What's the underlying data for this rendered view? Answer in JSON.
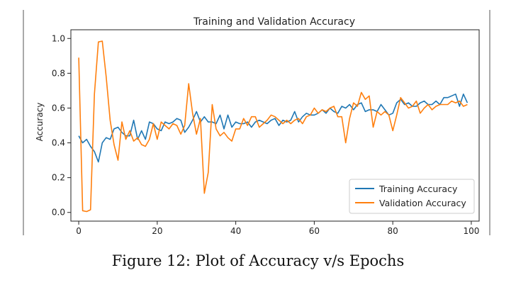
{
  "caption": "Figure 12: Plot of Accuracy v/s Epochs",
  "chart_data": {
    "type": "line",
    "title": "Training and Validation Accuracy",
    "xlabel": "",
    "ylabel": "Accuracy",
    "xlim": [
      -2,
      102
    ],
    "ylim": [
      -0.05,
      1.05
    ],
    "xticks": [
      0,
      20,
      40,
      60,
      80,
      100
    ],
    "yticks": [
      0.0,
      0.2,
      0.4,
      0.6,
      0.8,
      1.0
    ],
    "grid": false,
    "legend_position": "lower-right",
    "series": [
      {
        "name": "Training Accuracy",
        "color": "#1f77b4",
        "x": [
          0,
          1,
          2,
          3,
          4,
          5,
          6,
          7,
          8,
          9,
          10,
          11,
          12,
          13,
          14,
          15,
          16,
          17,
          18,
          19,
          20,
          21,
          22,
          23,
          24,
          25,
          26,
          27,
          28,
          29,
          30,
          31,
          32,
          33,
          34,
          35,
          36,
          37,
          38,
          39,
          40,
          41,
          42,
          43,
          44,
          45,
          46,
          47,
          48,
          49,
          50,
          51,
          52,
          53,
          54,
          55,
          56,
          57,
          58,
          59,
          60,
          61,
          62,
          63,
          64,
          65,
          66,
          67,
          68,
          69,
          70,
          71,
          72,
          73,
          74,
          75,
          76,
          77,
          78,
          79,
          80,
          81,
          82,
          83,
          84,
          85,
          86,
          87,
          88,
          89,
          90,
          91,
          92,
          93,
          94,
          95,
          96,
          97,
          98,
          99
        ],
        "values": [
          0.44,
          0.4,
          0.42,
          0.38,
          0.35,
          0.29,
          0.4,
          0.43,
          0.42,
          0.48,
          0.49,
          0.46,
          0.44,
          0.44,
          0.53,
          0.42,
          0.47,
          0.42,
          0.52,
          0.51,
          0.48,
          0.47,
          0.52,
          0.51,
          0.52,
          0.54,
          0.53,
          0.46,
          0.49,
          0.53,
          0.58,
          0.52,
          0.55,
          0.52,
          0.52,
          0.51,
          0.56,
          0.48,
          0.56,
          0.49,
          0.52,
          0.51,
          0.51,
          0.52,
          0.49,
          0.52,
          0.53,
          0.52,
          0.51,
          0.53,
          0.54,
          0.5,
          0.53,
          0.52,
          0.53,
          0.58,
          0.52,
          0.55,
          0.57,
          0.56,
          0.56,
          0.57,
          0.59,
          0.57,
          0.6,
          0.58,
          0.57,
          0.61,
          0.6,
          0.62,
          0.59,
          0.62,
          0.63,
          0.58,
          0.59,
          0.59,
          0.58,
          0.62,
          0.59,
          0.56,
          0.57,
          0.63,
          0.65,
          0.62,
          0.63,
          0.61,
          0.61,
          0.63,
          0.64,
          0.62,
          0.62,
          0.64,
          0.62,
          0.66,
          0.66,
          0.67,
          0.68,
          0.61,
          0.68,
          0.63
        ]
      },
      {
        "name": "Validation Accuracy",
        "color": "#ff7f0e",
        "x": [
          0,
          1,
          2,
          3,
          4,
          5,
          6,
          7,
          8,
          9,
          10,
          11,
          12,
          13,
          14,
          15,
          16,
          17,
          18,
          19,
          20,
          21,
          22,
          23,
          24,
          25,
          26,
          27,
          28,
          29,
          30,
          31,
          32,
          33,
          34,
          35,
          36,
          37,
          38,
          39,
          40,
          41,
          42,
          43,
          44,
          45,
          46,
          47,
          48,
          49,
          50,
          51,
          52,
          53,
          54,
          55,
          56,
          57,
          58,
          59,
          60,
          61,
          62,
          63,
          64,
          65,
          66,
          67,
          68,
          69,
          70,
          71,
          72,
          73,
          74,
          75,
          76,
          77,
          78,
          79,
          80,
          81,
          82,
          83,
          84,
          85,
          86,
          87,
          88,
          89,
          90,
          91,
          92,
          93,
          94,
          95,
          96,
          97,
          98,
          99
        ],
        "values": [
          0.89,
          0.01,
          0.005,
          0.015,
          0.68,
          0.98,
          0.985,
          0.78,
          0.53,
          0.39,
          0.3,
          0.52,
          0.42,
          0.47,
          0.41,
          0.43,
          0.39,
          0.38,
          0.42,
          0.51,
          0.42,
          0.52,
          0.5,
          0.48,
          0.51,
          0.5,
          0.45,
          0.5,
          0.74,
          0.57,
          0.45,
          0.54,
          0.11,
          0.23,
          0.62,
          0.48,
          0.44,
          0.46,
          0.43,
          0.41,
          0.48,
          0.48,
          0.54,
          0.5,
          0.55,
          0.55,
          0.49,
          0.51,
          0.53,
          0.56,
          0.55,
          0.53,
          0.51,
          0.53,
          0.51,
          0.53,
          0.54,
          0.51,
          0.55,
          0.56,
          0.6,
          0.57,
          0.59,
          0.58,
          0.6,
          0.61,
          0.55,
          0.55,
          0.4,
          0.54,
          0.63,
          0.61,
          0.69,
          0.65,
          0.67,
          0.49,
          0.58,
          0.56,
          0.58,
          0.56,
          0.47,
          0.56,
          0.66,
          0.63,
          0.6,
          0.61,
          0.64,
          0.57,
          0.6,
          0.62,
          0.59,
          0.61,
          0.62,
          0.62,
          0.62,
          0.64,
          0.63,
          0.64,
          0.61,
          0.62
        ]
      }
    ]
  }
}
